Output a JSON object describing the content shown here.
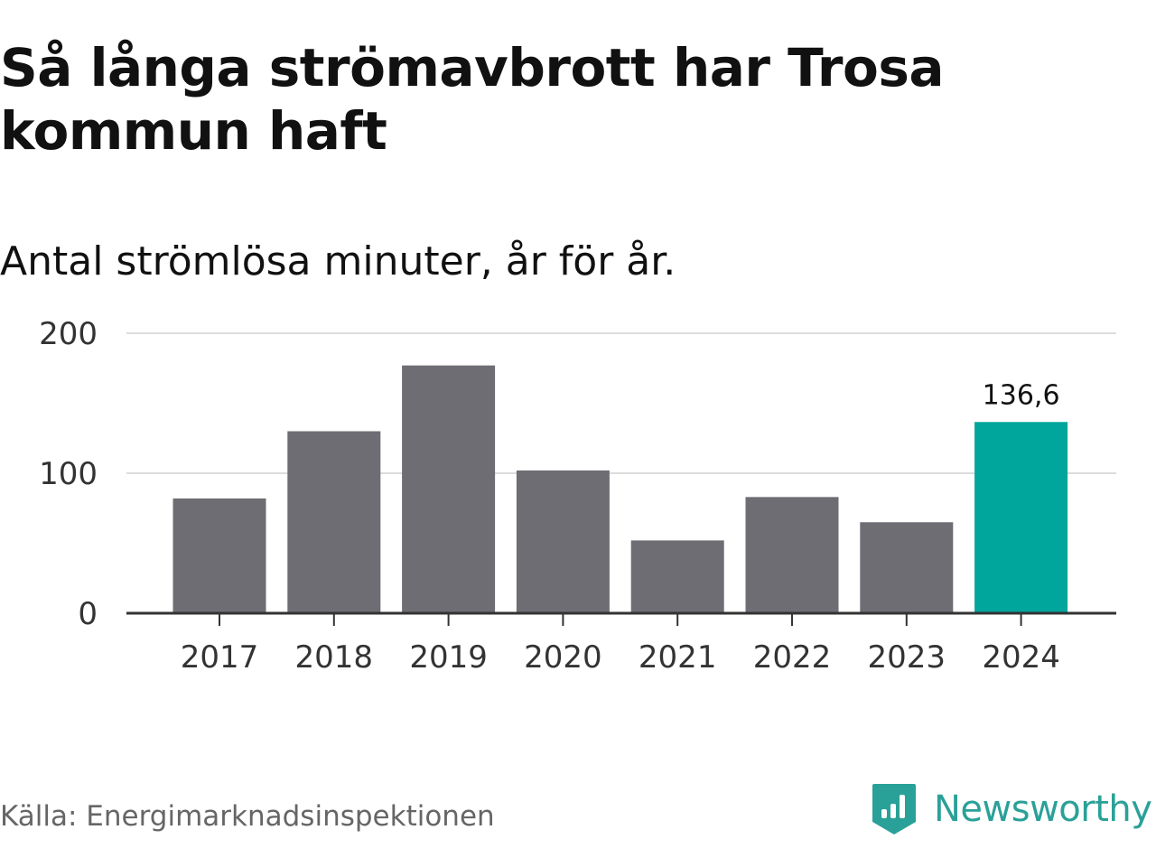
{
  "title": "Så långa strömavbrott har Trosa kommun haft",
  "subtitle": "Antal strömlösa minuter, år för år.",
  "source": "Källa: Energimarknadsinspektionen",
  "brand": {
    "name": "Newsworthy",
    "icon": "bar-chart-badge-icon",
    "color": "#2aa198"
  },
  "chart_data": {
    "type": "bar",
    "categories": [
      "2017",
      "2018",
      "2019",
      "2020",
      "2021",
      "2022",
      "2023",
      "2024"
    ],
    "values": [
      82,
      130,
      177,
      102,
      52,
      83,
      65,
      136.6
    ],
    "ylim": [
      0,
      200
    ],
    "yticks": [
      0,
      100,
      200
    ],
    "ytick_labels": [
      "0",
      "100",
      "200"
    ],
    "grid": true,
    "legend": "none",
    "bar_color": "#6e6d73",
    "highlight_color": "#00a59b",
    "highlight_index": 7,
    "data_labels": [
      {
        "index": 7,
        "text": "136,6"
      }
    ]
  }
}
